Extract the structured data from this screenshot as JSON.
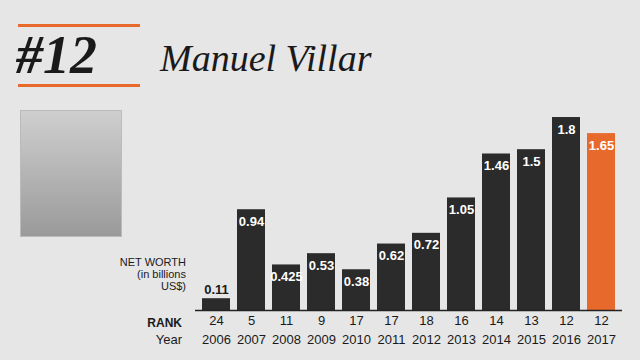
{
  "chart_data": {
    "type": "bar",
    "title": "Manuel Villar",
    "annotations": [
      "#12"
    ],
    "categories": [
      "2006",
      "2007",
      "2008",
      "2009",
      "2010",
      "2011",
      "2012",
      "2013",
      "2014",
      "2015",
      "2016",
      "2017"
    ],
    "values": [
      0.11,
      0.94,
      0.425,
      0.53,
      0.38,
      0.62,
      0.72,
      1.05,
      1.46,
      1.5,
      1.8,
      1.65
    ],
    "x_label": "Year",
    "y_label": "NET WORTH (in billions US$)",
    "rank_label": "RANK",
    "ranks": [
      24,
      5,
      11,
      9,
      17,
      17,
      18,
      16,
      14,
      13,
      12,
      12
    ],
    "colors": [
      "#2b2b2b",
      "#2b2b2b",
      "#2b2b2b",
      "#2b2b2b",
      "#2b2b2b",
      "#2b2b2b",
      "#2b2b2b",
      "#2b2b2b",
      "#2b2b2b",
      "#2b2b2b",
      "#2b2b2b",
      "#e8692c"
    ],
    "ylim": [
      0,
      2.5
    ],
    "data_labels": true,
    "tick_labels": "x"
  }
}
